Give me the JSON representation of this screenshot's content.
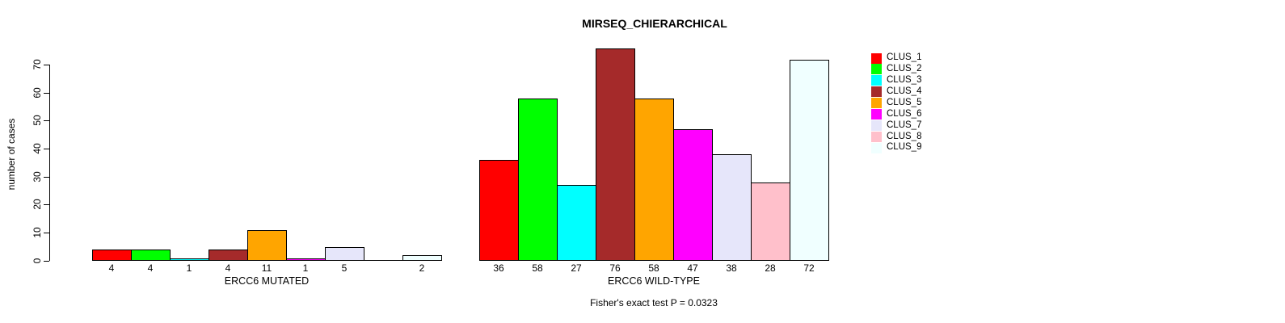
{
  "title": "MIRSEQ_CHIERARCHICAL",
  "chart_data": {
    "type": "bar",
    "title": "MIRSEQ_CHIERARCHICAL",
    "ylabel": "number of cases",
    "xlabel": "",
    "ylim": [
      0,
      76
    ],
    "yticks": [
      0,
      10,
      20,
      30,
      40,
      50,
      60,
      70
    ],
    "grid": false,
    "legend_position": "top-right",
    "annotation": "Fisher's exact test P = 0.0323",
    "series": [
      {
        "name": "CLUS_1",
        "color": "#FF0000"
      },
      {
        "name": "CLUS_2",
        "color": "#00FF00"
      },
      {
        "name": "CLUS_3",
        "color": "#00FFFF"
      },
      {
        "name": "CLUS_4",
        "color": "#A52A2A"
      },
      {
        "name": "CLUS_5",
        "color": "#FFA500"
      },
      {
        "name": "CLUS_6",
        "color": "#FF00FF"
      },
      {
        "name": "CLUS_7",
        "color": "#E6E6FA"
      },
      {
        "name": "CLUS_8",
        "color": "#FFC0CB"
      },
      {
        "name": "CLUS_9",
        "color": "#F0FFFF"
      }
    ],
    "groups": [
      {
        "label": "ERCC6 MUTATED",
        "values": [
          4,
          4,
          1,
          4,
          11,
          1,
          5,
          0,
          2
        ]
      },
      {
        "label": "ERCC6 WILD-TYPE",
        "values": [
          36,
          58,
          27,
          76,
          58,
          47,
          38,
          28,
          72
        ]
      }
    ]
  }
}
